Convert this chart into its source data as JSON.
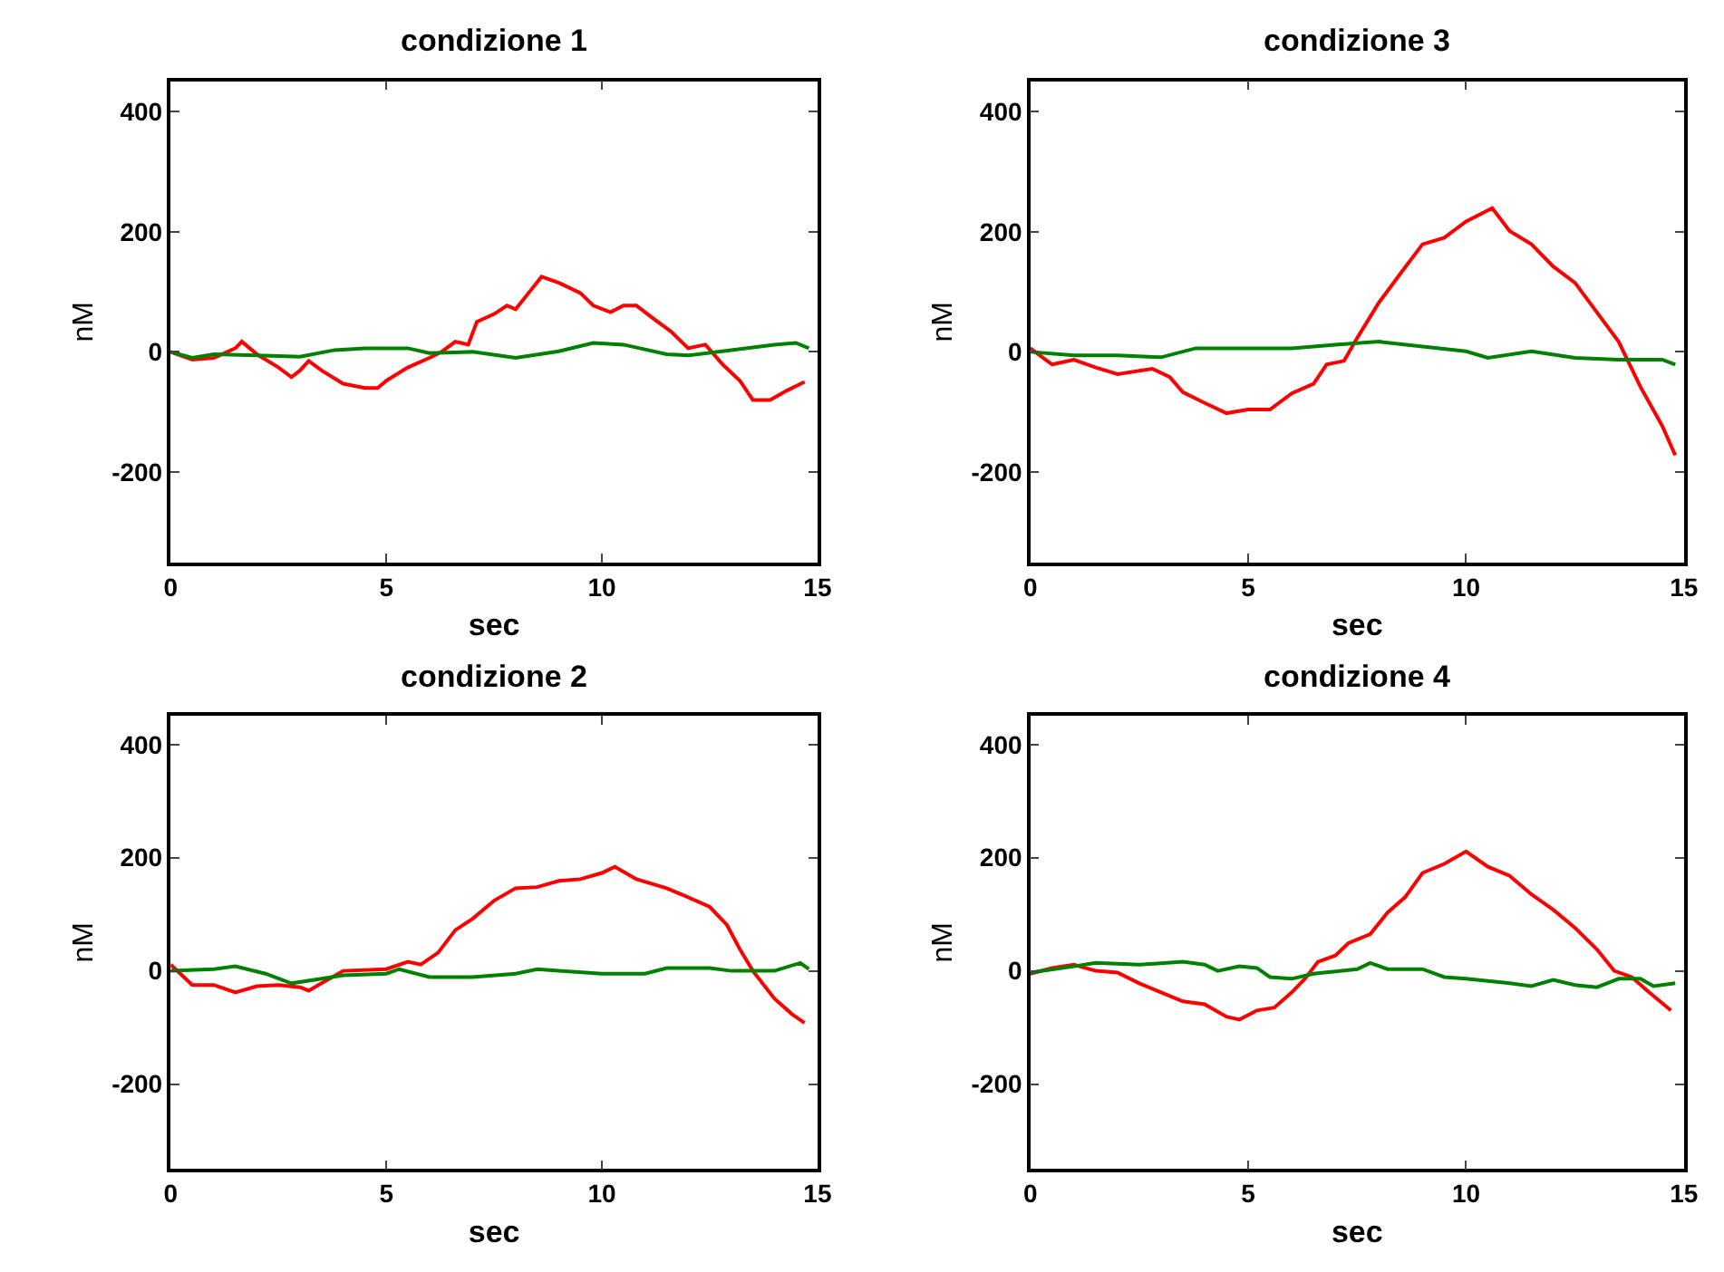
{
  "chart_data": [
    {
      "type": "line",
      "title": "condizione 1",
      "xlabel": "sec",
      "ylabel": "nM",
      "xlim": [
        0,
        15
      ],
      "xticks": [
        0,
        5,
        10,
        15
      ],
      "ylim": [
        -350,
        450
      ],
      "yticks": [
        -200,
        0,
        200,
        400
      ],
      "grid": false,
      "line_style": "solid",
      "series": [
        {
          "color": "#ff0000",
          "x": [
            0,
            0.5,
            1.0,
            1.5,
            1.65,
            2.0,
            2.5,
            2.8,
            3.0,
            3.2,
            3.5,
            4.0,
            4.5,
            4.8,
            5.0,
            5.5,
            6.0,
            6.3,
            6.6,
            6.9,
            7.1,
            7.5,
            7.8,
            8.0,
            8.3,
            8.6,
            9.0,
            9.5,
            9.8,
            10.2,
            10.5,
            10.8,
            11.2,
            11.6,
            12.0,
            12.4,
            12.8,
            13.2,
            13.5,
            13.9,
            14.3,
            14.7
          ],
          "values": [
            0,
            -13,
            -10,
            6,
            17,
            -4,
            -26,
            -42,
            -31,
            -15,
            -31,
            -53,
            -60,
            -60,
            -48,
            -26,
            -10,
            1,
            17,
            12,
            50,
            63,
            77,
            71,
            98,
            125,
            115,
            98,
            77,
            66,
            77,
            77,
            55,
            34,
            6,
            12,
            -21,
            -48,
            -80,
            -80,
            -64,
            -50
          ]
        },
        {
          "color": "#008000",
          "x": [
            0,
            0.5,
            1,
            2,
            3,
            3.8,
            4.5,
            5.5,
            6,
            7,
            8,
            9,
            9.8,
            10.5,
            11.5,
            12,
            13,
            14,
            14.5,
            14.8
          ],
          "values": [
            0,
            -10,
            -4,
            -6,
            -8,
            3,
            6,
            6,
            -2,
            0,
            -10,
            1,
            15,
            12,
            -4,
            -6,
            3,
            12,
            15,
            6
          ]
        }
      ]
    },
    {
      "type": "line",
      "title": "condizione 3",
      "xlabel": "sec",
      "ylabel": "nM",
      "xlim": [
        0,
        15
      ],
      "xticks": [
        0,
        5,
        10,
        15
      ],
      "ylim": [
        -350,
        450
      ],
      "yticks": [
        -200,
        0,
        200,
        400
      ],
      "grid": false,
      "line_style": "solid",
      "series": [
        {
          "color": "#ff0000",
          "x": [
            0,
            0.5,
            1.0,
            1.5,
            2.0,
            2.8,
            3.2,
            3.5,
            4.0,
            4.5,
            5.0,
            5.5,
            6.0,
            6.5,
            6.8,
            7.2,
            7.5,
            8.0,
            8.5,
            9.0,
            9.5,
            10.0,
            10.6,
            11.0,
            11.5,
            12.0,
            12.5,
            13.0,
            13.5,
            14.0,
            14.5,
            14.8
          ],
          "values": [
            6,
            -21,
            -13,
            -26,
            -37,
            -28,
            -42,
            -67,
            -85,
            -102,
            -96,
            -96,
            -69,
            -53,
            -21,
            -15,
            23,
            82,
            131,
            179,
            190,
            217,
            239,
            201,
            179,
            142,
            115,
            66,
            17,
            -58,
            -123,
            -172
          ]
        },
        {
          "color": "#008000",
          "x": [
            0,
            1,
            2,
            3,
            3.8,
            5,
            6,
            7,
            8,
            9,
            10,
            10.5,
            11.5,
            12.5,
            13.5,
            14.5,
            14.8
          ],
          "values": [
            0,
            -6,
            -6,
            -9,
            6,
            6,
            6,
            12,
            17,
            9,
            1,
            -10,
            1,
            -10,
            -13,
            -13,
            -21
          ]
        }
      ]
    },
    {
      "type": "line",
      "title": "condizione 2",
      "xlabel": "sec",
      "ylabel": "nM",
      "xlim": [
        0,
        15
      ],
      "xticks": [
        0,
        5,
        10,
        15
      ],
      "ylim": [
        -350,
        450
      ],
      "yticks": [
        -200,
        0,
        200,
        400
      ],
      "grid": false,
      "line_style": "solid",
      "series": [
        {
          "color": "#ff0000",
          "x": [
            0,
            0.5,
            1.0,
            1.5,
            2.0,
            2.5,
            3.0,
            3.2,
            3.5,
            4,
            5,
            5.5,
            5.8,
            6.2,
            6.6,
            7.0,
            7.5,
            8,
            8.5,
            9,
            9.5,
            10,
            10.3,
            10.8,
            11.5,
            12,
            12.5,
            12.9,
            13.2,
            13.5,
            14,
            14.4,
            14.7
          ],
          "values": [
            11,
            -25,
            -25,
            -38,
            -27,
            -25,
            -29,
            -35,
            -22,
            0,
            3,
            16,
            11,
            32,
            72,
            92,
            124,
            146,
            148,
            159,
            162,
            173,
            184,
            162,
            146,
            130,
            113,
            81,
            38,
            0,
            -49,
            -76,
            -92
          ]
        },
        {
          "color": "#008000",
          "x": [
            0,
            1,
            1.5,
            2.2,
            2.8,
            3.5,
            4,
            5,
            5.3,
            6,
            7,
            8,
            8.5,
            9,
            10,
            11,
            11.5,
            12.5,
            13,
            14,
            14.6,
            14.8
          ],
          "values": [
            0,
            3,
            8,
            -5,
            -22,
            -14,
            -8,
            -5,
            3,
            -11,
            -11,
            -5,
            3,
            0,
            -5,
            -5,
            5,
            5,
            0,
            0,
            14,
            3
          ]
        }
      ]
    },
    {
      "type": "line",
      "title": "condizione 4",
      "xlabel": "sec",
      "ylabel": "nM",
      "xlim": [
        0,
        15
      ],
      "xticks": [
        0,
        5,
        10,
        15
      ],
      "ylim": [
        -350,
        450
      ],
      "yticks": [
        -200,
        0,
        200,
        400
      ],
      "grid": false,
      "line_style": "solid",
      "series": [
        {
          "color": "#ff0000",
          "x": [
            0,
            0.5,
            1.0,
            1.5,
            2.0,
            2.5,
            3,
            3.5,
            4,
            4.5,
            4.8,
            5.2,
            5.6,
            6,
            6.3,
            6.6,
            7,
            7.3,
            7.8,
            8.2,
            8.6,
            9,
            9.5,
            10.0,
            10.5,
            11,
            11.5,
            12,
            12.5,
            13,
            13.4,
            13.8,
            14.2,
            14.7
          ],
          "values": [
            -5,
            5,
            11,
            0,
            -3,
            -22,
            -38,
            -54,
            -59,
            -81,
            -86,
            -70,
            -65,
            -38,
            -14,
            16,
            27,
            49,
            65,
            103,
            130,
            173,
            189,
            211,
            184,
            168,
            135,
            108,
            76,
            38,
            0,
            -11,
            -38,
            -70
          ]
        },
        {
          "color": "#008000",
          "x": [
            0,
            1,
            1.5,
            2.5,
            3.5,
            4,
            4.3,
            4.8,
            5.2,
            5.5,
            6,
            6.5,
            7.5,
            7.8,
            8.2,
            9,
            9.5,
            10,
            11,
            11.5,
            12,
            12.5,
            13,
            13.5,
            14,
            14.3,
            14.8
          ],
          "values": [
            -3,
            8,
            14,
            11,
            16,
            11,
            0,
            8,
            5,
            -11,
            -14,
            -5,
            3,
            14,
            3,
            3,
            -11,
            -14,
            -22,
            -27,
            -16,
            -25,
            -29,
            -14,
            -14,
            -27,
            -22
          ]
        }
      ]
    }
  ]
}
